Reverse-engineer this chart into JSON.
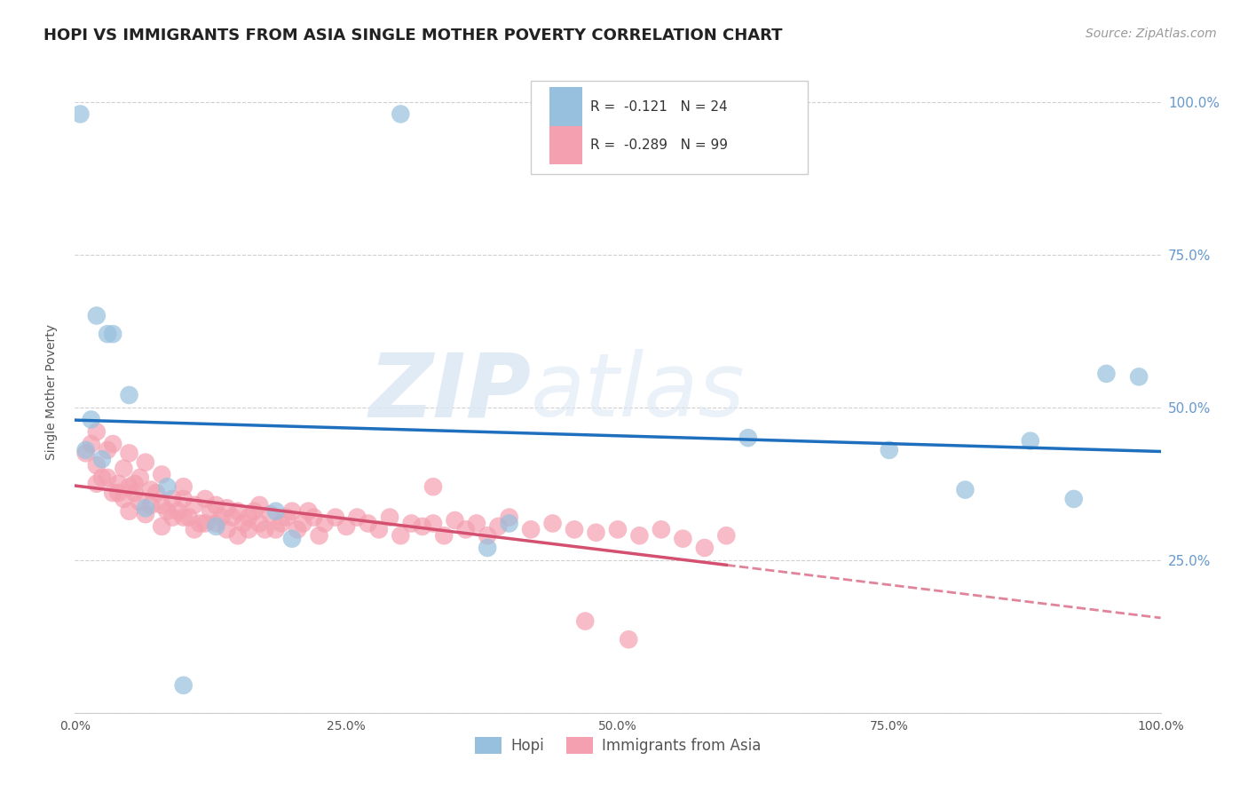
{
  "title": "HOPI VS IMMIGRANTS FROM ASIA SINGLE MOTHER POVERTY CORRELATION CHART",
  "source": "Source: ZipAtlas.com",
  "ylabel": "Single Mother Poverty",
  "watermark_part1": "ZIP",
  "watermark_part2": "atlas",
  "hopi_R": -0.121,
  "hopi_N": 24,
  "asia_R": -0.289,
  "asia_N": 99,
  "hopi_color": "#96c0de",
  "asia_color": "#f4a0b0",
  "hopi_line_color": "#1f6fbf",
  "asia_line_color": "#d45070",
  "background_color": "#ffffff",
  "grid_color": "#d0d0d0",
  "hopi_points": [
    [
      0.5,
      98.0
    ],
    [
      30.0,
      98.0
    ],
    [
      2.0,
      65.0
    ],
    [
      3.5,
      62.0
    ],
    [
      3.0,
      62.0
    ],
    [
      5.0,
      52.0
    ],
    [
      1.5,
      48.0
    ],
    [
      1.0,
      43.0
    ],
    [
      2.5,
      41.5
    ],
    [
      8.5,
      37.0
    ],
    [
      6.5,
      33.5
    ],
    [
      18.5,
      33.0
    ],
    [
      13.0,
      30.5
    ],
    [
      40.0,
      31.0
    ],
    [
      20.0,
      28.5
    ],
    [
      38.0,
      27.0
    ],
    [
      62.0,
      45.0
    ],
    [
      75.0,
      43.0
    ],
    [
      82.0,
      36.5
    ],
    [
      88.0,
      44.5
    ],
    [
      92.0,
      35.0
    ],
    [
      95.0,
      55.5
    ],
    [
      98.0,
      55.0
    ],
    [
      10.0,
      4.5
    ]
  ],
  "asia_points": [
    [
      1.0,
      42.5
    ],
    [
      1.5,
      44.0
    ],
    [
      2.0,
      40.5
    ],
    [
      2.0,
      37.5
    ],
    [
      2.5,
      38.5
    ],
    [
      3.0,
      43.0
    ],
    [
      3.0,
      38.5
    ],
    [
      3.5,
      36.0
    ],
    [
      4.0,
      37.5
    ],
    [
      4.0,
      36.0
    ],
    [
      4.5,
      35.0
    ],
    [
      4.5,
      40.0
    ],
    [
      5.0,
      37.0
    ],
    [
      5.0,
      33.0
    ],
    [
      5.5,
      36.0
    ],
    [
      5.5,
      37.5
    ],
    [
      6.0,
      38.5
    ],
    [
      6.0,
      34.5
    ],
    [
      6.5,
      32.5
    ],
    [
      7.0,
      34.0
    ],
    [
      7.0,
      36.5
    ],
    [
      7.5,
      36.0
    ],
    [
      8.0,
      34.0
    ],
    [
      8.0,
      30.5
    ],
    [
      8.5,
      33.0
    ],
    [
      9.0,
      35.0
    ],
    [
      9.0,
      32.0
    ],
    [
      9.5,
      33.0
    ],
    [
      10.0,
      35.0
    ],
    [
      10.0,
      32.0
    ],
    [
      10.5,
      32.0
    ],
    [
      11.0,
      34.0
    ],
    [
      11.0,
      30.0
    ],
    [
      11.5,
      31.0
    ],
    [
      12.0,
      35.0
    ],
    [
      12.0,
      31.0
    ],
    [
      12.5,
      33.0
    ],
    [
      13.0,
      34.0
    ],
    [
      13.0,
      31.0
    ],
    [
      13.5,
      32.0
    ],
    [
      14.0,
      33.5
    ],
    [
      14.0,
      30.0
    ],
    [
      14.5,
      32.0
    ],
    [
      15.0,
      33.0
    ],
    [
      15.0,
      29.0
    ],
    [
      15.5,
      31.0
    ],
    [
      16.0,
      32.0
    ],
    [
      16.0,
      30.0
    ],
    [
      16.5,
      33.0
    ],
    [
      17.0,
      31.0
    ],
    [
      17.0,
      34.0
    ],
    [
      17.5,
      30.0
    ],
    [
      18.0,
      32.5
    ],
    [
      18.5,
      30.0
    ],
    [
      19.0,
      31.0
    ],
    [
      19.5,
      32.0
    ],
    [
      20.0,
      33.0
    ],
    [
      20.5,
      30.0
    ],
    [
      21.0,
      31.0
    ],
    [
      21.5,
      33.0
    ],
    [
      22.0,
      32.0
    ],
    [
      22.5,
      29.0
    ],
    [
      23.0,
      31.0
    ],
    [
      24.0,
      32.0
    ],
    [
      25.0,
      30.5
    ],
    [
      26.0,
      32.0
    ],
    [
      27.0,
      31.0
    ],
    [
      28.0,
      30.0
    ],
    [
      29.0,
      32.0
    ],
    [
      30.0,
      29.0
    ],
    [
      31.0,
      31.0
    ],
    [
      32.0,
      30.5
    ],
    [
      33.0,
      31.0
    ],
    [
      34.0,
      29.0
    ],
    [
      35.0,
      31.5
    ],
    [
      36.0,
      30.0
    ],
    [
      37.0,
      31.0
    ],
    [
      38.0,
      29.0
    ],
    [
      39.0,
      30.5
    ],
    [
      40.0,
      32.0
    ],
    [
      42.0,
      30.0
    ],
    [
      44.0,
      31.0
    ],
    [
      46.0,
      30.0
    ],
    [
      48.0,
      29.5
    ],
    [
      50.0,
      30.0
    ],
    [
      52.0,
      29.0
    ],
    [
      54.0,
      30.0
    ],
    [
      56.0,
      28.5
    ],
    [
      58.0,
      27.0
    ],
    [
      60.0,
      29.0
    ],
    [
      2.0,
      46.0
    ],
    [
      3.5,
      44.0
    ],
    [
      5.0,
      42.5
    ],
    [
      6.5,
      41.0
    ],
    [
      8.0,
      39.0
    ],
    [
      10.0,
      37.0
    ],
    [
      33.0,
      37.0
    ],
    [
      47.0,
      15.0
    ],
    [
      51.0,
      12.0
    ]
  ],
  "xlim": [
    0,
    100
  ],
  "ylim": [
    0,
    105
  ],
  "title_fontsize": 13,
  "source_fontsize": 10
}
